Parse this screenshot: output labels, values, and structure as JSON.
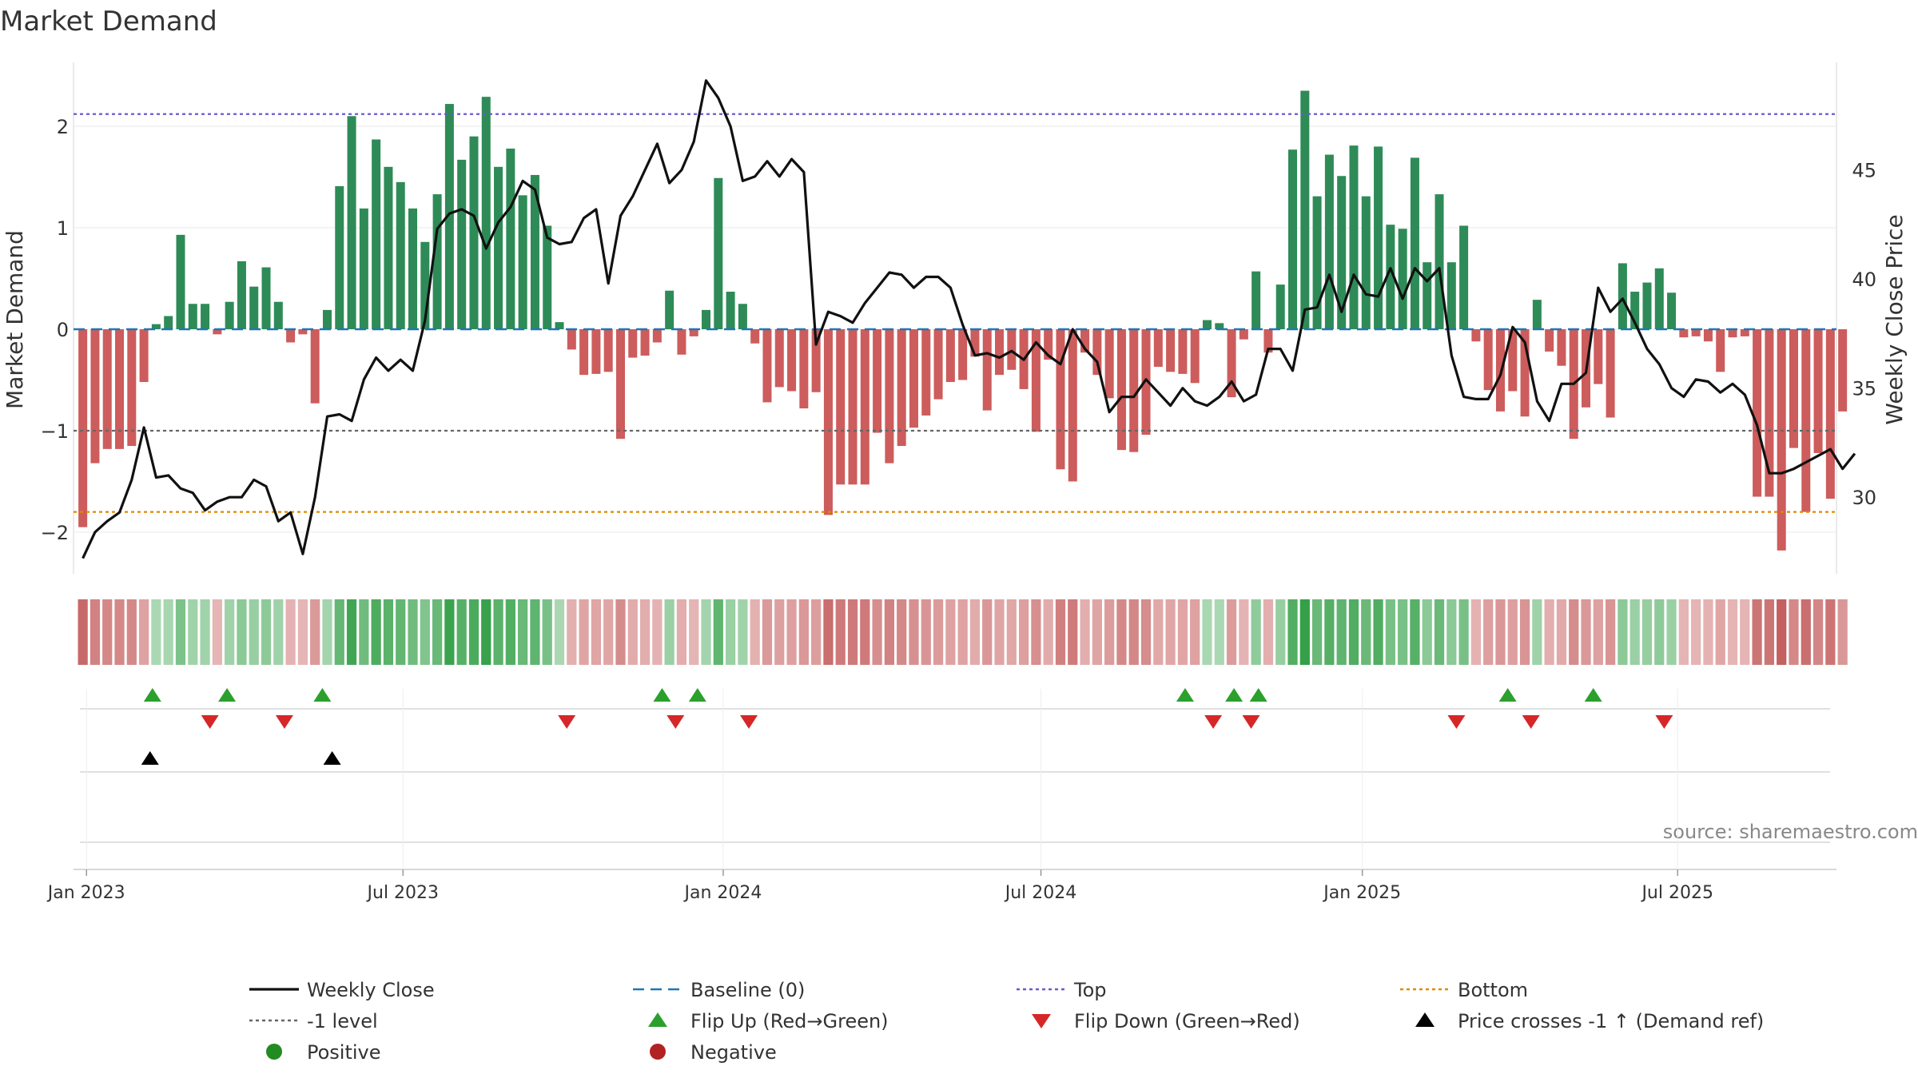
{
  "chart_data": {
    "type": "bar",
    "title": "Market Demand",
    "ylabel": "Market Demand",
    "y2label": "Weekly Close Price",
    "ylim": [
      -2.45,
      2.6
    ],
    "y2lim": [
      26.1,
      49.4
    ],
    "y_ticks": [
      -2,
      -1,
      0,
      1,
      2
    ],
    "y_tick_labels": [
      "−2",
      "−1",
      "0",
      "1",
      "2"
    ],
    "y2_ticks": [
      30,
      35,
      40,
      45
    ],
    "y2_tick_labels": [
      "30",
      "35",
      "40",
      "45"
    ],
    "x_ticks": [
      "Jan 2023",
      "Jul 2023",
      "Jan 2024",
      "Jul 2024",
      "Jan 2025",
      "Jul 2025"
    ],
    "x_tick_weeks": [
      0.8,
      26.7,
      52.9,
      78.9,
      105.2,
      131.0
    ],
    "weeks": 144,
    "levels": {
      "top": 2.12,
      "minus_one": -1.0,
      "bottom": -1.8,
      "baseline": 0
    },
    "demand": [
      -1.95,
      -1.32,
      -1.18,
      -1.18,
      -1.15,
      -0.52,
      0.05,
      0.13,
      0.93,
      0.25,
      0.25,
      -0.05,
      0.27,
      0.67,
      0.42,
      0.61,
      0.27,
      -0.13,
      -0.05,
      -0.73,
      0.19,
      1.41,
      2.1,
      1.19,
      1.87,
      1.6,
      1.45,
      1.19,
      0.86,
      1.33,
      2.22,
      1.67,
      1.9,
      2.29,
      1.6,
      1.78,
      1.32,
      1.52,
      1.02,
      0.07,
      -0.2,
      -0.45,
      -0.44,
      -0.42,
      -1.08,
      -0.28,
      -0.26,
      -0.13,
      0.38,
      -0.25,
      -0.07,
      0.19,
      1.49,
      0.37,
      0.25,
      -0.14,
      -0.72,
      -0.57,
      -0.61,
      -0.78,
      -0.62,
      -1.83,
      -1.53,
      -1.53,
      -1.53,
      -1.02,
      -1.32,
      -1.15,
      -0.97,
      -0.85,
      -0.69,
      -0.52,
      -0.5,
      -0.27,
      -0.8,
      -0.45,
      -0.4,
      -0.59,
      -1.01,
      -0.3,
      -1.38,
      -1.5,
      -0.23,
      -0.45,
      -0.68,
      -1.19,
      -1.21,
      -1.04,
      -0.37,
      -0.42,
      -0.44,
      -0.53,
      0.09,
      0.06,
      -0.67,
      -0.1,
      0.57,
      -0.23,
      0.44,
      1.77,
      2.35,
      1.31,
      1.72,
      1.51,
      1.81,
      1.31,
      1.8,
      1.03,
      0.99,
      1.69,
      0.66,
      1.33,
      0.66,
      1.02,
      -0.12,
      -0.6,
      -0.81,
      -0.61,
      -0.86,
      0.29,
      -0.22,
      -0.36,
      -1.08,
      -0.77,
      -0.54,
      -0.87,
      0.65,
      0.37,
      0.46,
      0.6,
      0.36,
      -0.08,
      -0.07,
      -0.12,
      -0.42,
      -0.08,
      -0.07,
      -1.65,
      -1.65,
      -2.18,
      -1.17,
      -1.8,
      -1.22,
      -1.67,
      -0.81
    ],
    "close": [
      27.2,
      28.4,
      28.9,
      29.3,
      30.8,
      33.2,
      30.9,
      31.0,
      30.4,
      30.2,
      29.4,
      29.8,
      30.0,
      30.0,
      30.8,
      30.5,
      28.9,
      29.3,
      27.4,
      30.0,
      33.7,
      33.8,
      33.5,
      35.4,
      36.4,
      35.8,
      36.3,
      35.8,
      38.1,
      42.3,
      43.0,
      43.2,
      42.9,
      41.4,
      42.6,
      43.3,
      44.5,
      44.1,
      41.9,
      41.6,
      41.7,
      42.8,
      43.2,
      39.8,
      42.9,
      43.8,
      45.0,
      46.2,
      44.4,
      45.0,
      46.3,
      49.1,
      48.3,
      47.0,
      44.5,
      44.7,
      45.4,
      44.7,
      45.5,
      44.9,
      37.0,
      38.5,
      38.3,
      38.0,
      38.9,
      39.6,
      40.3,
      40.2,
      39.6,
      40.1,
      40.1,
      39.6,
      37.9,
      36.5,
      36.6,
      36.4,
      36.7,
      36.3,
      37.1,
      36.5,
      36.1,
      37.7,
      36.8,
      36.2,
      33.9,
      34.6,
      34.6,
      35.4,
      34.8,
      34.2,
      35.0,
      34.4,
      34.2,
      34.6,
      35.3,
      34.4,
      34.7,
      36.8,
      36.8,
      35.8,
      38.6,
      38.7,
      40.2,
      38.5,
      40.2,
      39.3,
      39.2,
      40.5,
      39.1,
      40.5,
      39.9,
      40.5,
      36.5,
      34.6,
      34.5,
      34.5,
      35.6,
      37.8,
      37.1,
      34.4,
      33.5,
      35.2,
      35.2,
      35.7,
      39.6,
      38.5,
      39.1,
      38.0,
      36.8,
      36.1,
      35.0,
      34.6,
      35.4,
      35.3,
      34.8,
      35.2,
      34.7,
      33.3,
      31.1,
      31.1,
      31.3,
      31.6,
      31.9,
      32.2,
      31.3,
      32.0
    ],
    "regime_color_note": "shade strip mirrors demand sign and magnitude",
    "markers": {
      "flip_up": [
        5.7,
        11.8,
        19.6,
        47.4,
        50.3,
        90.2,
        94.2,
        96.2,
        116.6,
        123.6
      ],
      "flip_down": [
        10.4,
        16.5,
        39.6,
        48.5,
        54.5,
        92.5,
        95.6,
        112.4,
        118.5,
        129.4
      ],
      "price_cross": [
        5.5,
        20.4
      ]
    },
    "colors": {
      "positive": "#2e8b57",
      "negative": "#cd5c5c",
      "close": "#111111",
      "top": "#6a5acd",
      "bottom": "#e08a00",
      "minus_one": "#666666",
      "baseline": "#1f77b4",
      "flip_up": "#2ca02c",
      "flip_down": "#d62728",
      "price_cross": "#000000"
    },
    "source": "source: sharemaestro.com",
    "legend": {
      "placement": "bottom",
      "items": [
        {
          "label": "Weekly Close",
          "kind": "line",
          "color": "#111111"
        },
        {
          "label": "Baseline (0)",
          "kind": "dash",
          "color": "#1f77b4"
        },
        {
          "label": "Top",
          "kind": "dot",
          "color": "#6a5acd"
        },
        {
          "label": "Bottom",
          "kind": "dot",
          "color": "#e08a00"
        },
        {
          "label": "-1 level",
          "kind": "dot",
          "color": "#666666"
        },
        {
          "label": "Flip Up (Red→Green)",
          "kind": "tri-up",
          "color": "#2ca02c"
        },
        {
          "label": "Flip Down (Green→Red)",
          "kind": "tri-down",
          "color": "#d62728"
        },
        {
          "label": "Price crosses -1 ↑ (Demand ref)",
          "kind": "tri-up",
          "color": "#000000"
        },
        {
          "label": "Positive",
          "kind": "circle",
          "color": "#228b22"
        },
        {
          "label": "Negative",
          "kind": "circle",
          "color": "#b22222"
        }
      ]
    }
  }
}
